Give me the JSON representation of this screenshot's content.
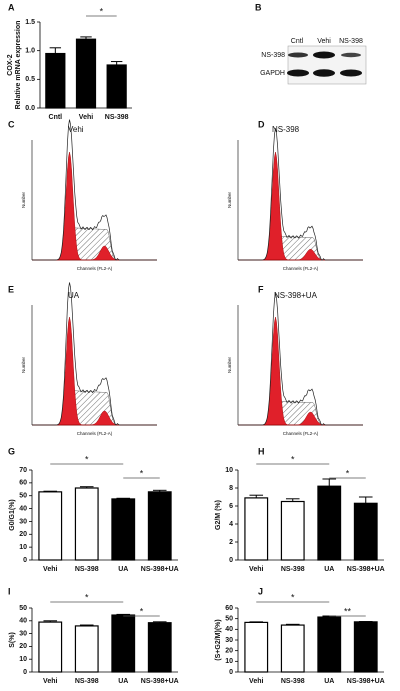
{
  "chart_data": [
    {
      "type": "bar",
      "panel": "A",
      "ylabel": [
        "COX-2",
        "Relative mRNA expression"
      ],
      "categories": [
        "Cntl",
        "Vehi",
        "NS-398"
      ],
      "values": [
        0.95,
        1.2,
        0.75
      ],
      "errors": [
        0.1,
        0.04,
        0.06
      ],
      "colors": [
        "#000000",
        "#000000",
        "#000000"
      ],
      "ylim": [
        0,
        1.5
      ],
      "yticks": [
        {
          "value": 0,
          "label": "0.0"
        },
        0.5,
        {
          "value": 1,
          "label": "1.0"
        },
        1.5
      ],
      "annotations": [
        {
          "text": "*",
          "between": [
            "Vehi",
            "NS-398"
          ]
        }
      ]
    },
    {
      "type": "bar",
      "panel": "G",
      "ylabel": "G0/G1(%)",
      "categories": [
        "Vehi",
        "NS-398",
        "UA",
        "NS-398+UA"
      ],
      "values": [
        53,
        56,
        47.5,
        53
      ],
      "errors": [
        0.5,
        1,
        0.5,
        1.2
      ],
      "colors": [
        "#ffffff",
        "#ffffff",
        "#000000",
        "#000000"
      ],
      "ylim": [
        0,
        70
      ],
      "yticks": [
        0,
        10,
        20,
        30,
        40,
        50,
        60,
        70
      ],
      "annotations": [
        {
          "text": "*",
          "between": [
            "Vehi",
            "UA"
          ]
        },
        {
          "text": "*",
          "between": [
            "UA",
            "NS-398+UA"
          ]
        }
      ]
    },
    {
      "type": "bar",
      "panel": "H",
      "ylabel": "G2/M (%)",
      "categories": [
        "Vehi",
        "NS-398",
        "UA",
        "NS-398+UA"
      ],
      "values": [
        6.9,
        6.5,
        8.2,
        6.3
      ],
      "errors": [
        0.3,
        0.3,
        0.8,
        0.7
      ],
      "colors": [
        "#ffffff",
        "#ffffff",
        "#000000",
        "#000000"
      ],
      "ylim": [
        0,
        10
      ],
      "yticks": [
        0,
        2,
        4,
        6,
        8,
        10
      ],
      "annotations": [
        {
          "text": "*",
          "between": [
            "Vehi",
            "UA"
          ]
        },
        {
          "text": "*",
          "between": [
            "UA",
            "NS-398+UA"
          ]
        }
      ]
    },
    {
      "type": "bar",
      "panel": "I",
      "ylabel": "S(%)",
      "categories": [
        "Vehi",
        "NS-398",
        "UA",
        "NS-398+UA"
      ],
      "values": [
        39,
        36,
        44.5,
        38.5
      ],
      "errors": [
        1,
        0.7,
        0.5,
        0.7
      ],
      "colors": [
        "#ffffff",
        "#ffffff",
        "#000000",
        "#000000"
      ],
      "ylim": [
        0,
        50
      ],
      "yticks": [
        0,
        10,
        20,
        30,
        40,
        50
      ],
      "annotations": [
        {
          "text": "*",
          "between": [
            "Vehi",
            "UA"
          ]
        },
        {
          "text": "*",
          "between": [
            "UA",
            "NS-398+UA"
          ]
        }
      ]
    },
    {
      "type": "bar",
      "panel": "J",
      "ylabel": "(S+G2/M)(%)",
      "categories": [
        "Vehi",
        "NS-398",
        "UA",
        "NS-398+UA"
      ],
      "values": [
        46.5,
        44,
        51.5,
        47
      ],
      "errors": [
        0.5,
        0.7,
        1,
        0.3
      ],
      "colors": [
        "#ffffff",
        "#ffffff",
        "#000000",
        "#000000"
      ],
      "ylim": [
        0,
        60
      ],
      "yticks": [
        0,
        10,
        20,
        30,
        40,
        50,
        60
      ],
      "annotations": [
        {
          "text": "*",
          "between": [
            "Vehi",
            "UA"
          ]
        },
        {
          "text": "**",
          "between": [
            "UA",
            "NS-398+UA"
          ]
        }
      ]
    }
  ],
  "blot": {
    "panel": "B",
    "lanes": [
      "Cntl",
      "Vehi",
      "NS-398"
    ],
    "rows": [
      "NS-398",
      "GAPDH"
    ]
  },
  "histograms": [
    {
      "panel": "C",
      "title": "Vehi",
      "xlabel": "Channels (FL2-A)",
      "ylabel": "Number"
    },
    {
      "panel": "D",
      "title": "NS-398",
      "xlabel": "Channels (FL2-A)",
      "ylabel": "Number"
    },
    {
      "panel": "E",
      "title": "UA",
      "xlabel": "Channels (FL2-A)",
      "ylabel": "Number"
    },
    {
      "panel": "F",
      "title": "NS-398+UA",
      "xlabel": "Channels (FL2-A)",
      "ylabel": "Number"
    }
  ]
}
